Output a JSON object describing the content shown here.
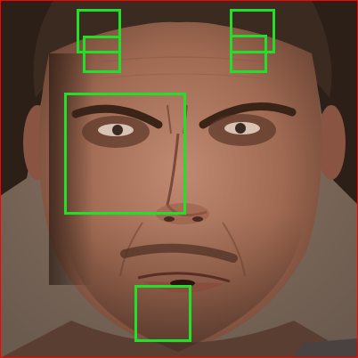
{
  "image": {
    "subject": "face-closeup",
    "frame_color": "#ff0000",
    "roi_color": "#22e02a",
    "regions": [
      {
        "name": "brow-left-upper"
      },
      {
        "name": "brow-left-lower"
      },
      {
        "name": "brow-right-upper"
      },
      {
        "name": "brow-right-lower"
      },
      {
        "name": "glabella-nose"
      },
      {
        "name": "chin-mouth"
      }
    ]
  }
}
